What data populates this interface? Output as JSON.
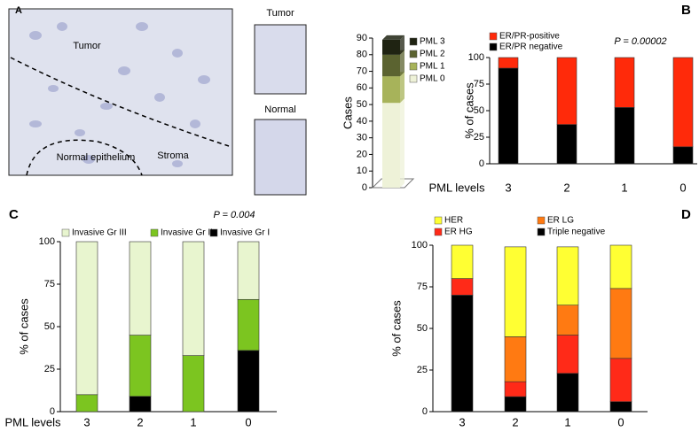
{
  "panel_a": {
    "label": "A",
    "image_labels": [
      "Tumor",
      "Normal epithelium",
      "Stroma"
    ],
    "inset_titles": [
      "Tumor",
      "Normal"
    ]
  },
  "chart_data": [
    {
      "type": "bar",
      "stacked": true,
      "ylabel": "Cases",
      "categories": [
        null
      ],
      "ylim": [
        0,
        90
      ],
      "yticks": [
        0,
        10,
        20,
        30,
        40,
        50,
        60,
        70,
        80,
        90
      ],
      "series": [
        {
          "name": "PML 0",
          "color": "#eef2d8",
          "values": [
            51
          ]
        },
        {
          "name": "PML 1",
          "color": "#a7b35a",
          "values": [
            16
          ]
        },
        {
          "name": "PML 2",
          "color": "#5b6330",
          "values": [
            13
          ]
        },
        {
          "name": "PML 3",
          "color": "#1f2312",
          "values": [
            9
          ]
        }
      ]
    },
    {
      "type": "bar",
      "stacked": true,
      "panel_label": "B",
      "ylabel": "% of cases",
      "xlabel": "PML levels",
      "annotation": "P = 0.00002",
      "categories": [
        "3",
        "2",
        "1",
        "0"
      ],
      "ylim": [
        0,
        100
      ],
      "yticks": [
        0,
        25,
        50,
        75,
        100
      ],
      "series": [
        {
          "name": "ER/PR negative",
          "color": "#000000",
          "values": [
            90,
            37,
            53,
            16
          ]
        },
        {
          "name": "ER/PR-positive",
          "color": "#ff2a0a",
          "values": [
            10,
            63,
            47,
            84
          ]
        }
      ]
    },
    {
      "type": "bar",
      "stacked": true,
      "panel_label": "C",
      "ylabel": "% of cases",
      "xlabel": "PML levels",
      "annotation": "P = 0.004",
      "categories": [
        "3",
        "2",
        "1",
        "0"
      ],
      "ylim": [
        0,
        100
      ],
      "yticks": [
        0,
        25,
        50,
        75,
        100
      ],
      "series": [
        {
          "name": "Invasive Gr I",
          "color": "#000000",
          "values": [
            0,
            9,
            0,
            36
          ]
        },
        {
          "name": "Invasive Gr II",
          "color": "#7cc520",
          "values": [
            10,
            36,
            33,
            30
          ]
        },
        {
          "name": "Invasive Gr III",
          "color": "#e8f5cf",
          "values": [
            90,
            55,
            67,
            34
          ]
        }
      ]
    },
    {
      "type": "bar",
      "stacked": true,
      "panel_label": "D",
      "ylabel": "% of cases",
      "categories": [
        "3",
        "2",
        "1",
        "0"
      ],
      "ylim": [
        0,
        100
      ],
      "yticks": [
        0,
        25,
        50,
        75,
        100
      ],
      "series": [
        {
          "name": "Triple negative",
          "color": "#000000",
          "values": [
            70,
            9,
            23,
            6
          ]
        },
        {
          "name": "ER HG",
          "color": "#ff2a18",
          "values": [
            10,
            9,
            23,
            26
          ]
        },
        {
          "name": "ER LG",
          "color": "#ff7a12",
          "values": [
            0,
            27,
            18,
            42
          ]
        },
        {
          "name": "HER",
          "color": "#ffff33",
          "values": [
            20,
            54,
            35,
            26
          ]
        }
      ]
    }
  ]
}
